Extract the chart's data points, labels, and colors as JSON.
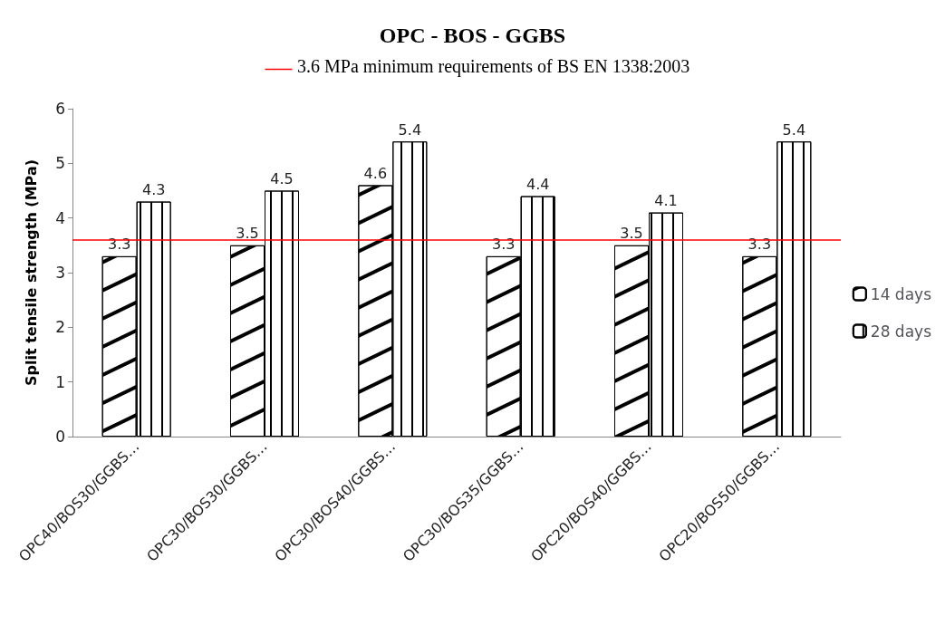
{
  "chart_data": {
    "type": "bar",
    "title": "OPC - BOS - GGBS",
    "ylabel": "Split tensile strength (MPa)",
    "categories": [
      "OPC40/BOS30/GGBS…",
      "OPC30/BOS30/GGBS…",
      "OPC30/BOS40/GGBS…",
      "OPC30/BOS35/GGBS…",
      "OPC20/BOS40/GGBS…",
      "OPC20/BOS50/GGBS…"
    ],
    "series": [
      {
        "name": "14 days",
        "color": "#ffffff",
        "values": [
          3.3,
          3.5,
          4.6,
          3.3,
          3.5,
          3.3
        ]
      },
      {
        "name": "28 days",
        "color": "#ffffff",
        "values": [
          4.3,
          4.5,
          5.4,
          4.4,
          4.1,
          5.4
        ]
      }
    ],
    "ylim": [
      0,
      6
    ],
    "yticks": [
      0,
      1,
      2,
      3,
      4,
      5,
      6
    ],
    "grid": false,
    "legend": "right",
    "data_labels": true,
    "ref_lines": [
      {
        "axis": "y",
        "value": 3.6,
        "label": "3.6 MPa minimum requirements of BS EN 1338:2003",
        "color": "#ff0000"
      }
    ]
  }
}
